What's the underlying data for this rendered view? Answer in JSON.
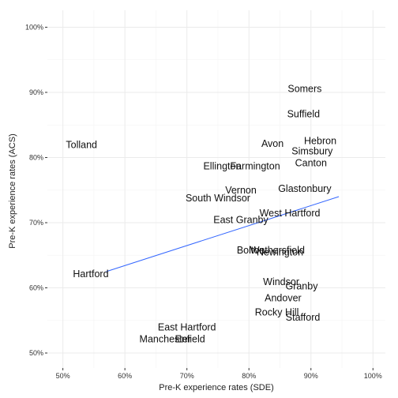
{
  "chart_data": {
    "type": "scatter",
    "title": "",
    "xlabel": "Pre-K experience rates (SDE)",
    "ylabel": "Pre-K experience rates (ACS)",
    "xlim": [
      0.475,
      1.02
    ],
    "ylim": [
      0.477,
      1.026
    ],
    "x_ticks": [
      0.5,
      0.6,
      0.7,
      0.8,
      0.9,
      1.0
    ],
    "y_ticks": [
      0.5,
      0.6,
      0.7,
      0.8,
      0.9,
      1.0
    ],
    "x_tick_labels": [
      "50%",
      "60%",
      "70%",
      "80%",
      "90%",
      "100%"
    ],
    "y_tick_labels": [
      "50%",
      "60%",
      "70%",
      "80%",
      "90%",
      "100%"
    ],
    "grid": true,
    "trend_line": {
      "x": [
        0.57,
        0.945
      ],
      "y": [
        0.625,
        0.74
      ],
      "color": "#3366ff"
    },
    "points": [
      {
        "label": "Somers",
        "x": 0.89,
        "y": 0.906
      },
      {
        "label": "Suffield",
        "x": 0.888,
        "y": 0.867
      },
      {
        "label": "Hebron",
        "x": 0.915,
        "y": 0.826
      },
      {
        "label": "Tolland",
        "x": 0.53,
        "y": 0.82
      },
      {
        "label": "Avon",
        "x": 0.838,
        "y": 0.822
      },
      {
        "label": "Simsbury",
        "x": 0.902,
        "y": 0.81
      },
      {
        "label": "Canton",
        "x": 0.9,
        "y": 0.792
      },
      {
        "label": "Ellington",
        "x": 0.757,
        "y": 0.787
      },
      {
        "label": "Farmington",
        "x": 0.81,
        "y": 0.787
      },
      {
        "label": "Glastonbury",
        "x": 0.89,
        "y": 0.753
      },
      {
        "label": "Vernon",
        "x": 0.787,
        "y": 0.75
      },
      {
        "label": "South Windsor",
        "x": 0.75,
        "y": 0.738
      },
      {
        "label": "West Hartford",
        "x": 0.866,
        "y": 0.715
      },
      {
        "label": "East Granby",
        "x": 0.787,
        "y": 0.705
      },
      {
        "label": "Bolton",
        "x": 0.803,
        "y": 0.658
      },
      {
        "label": "Wethersfield",
        "x": 0.846,
        "y": 0.658
      },
      {
        "label": "Newington",
        "x": 0.85,
        "y": 0.655
      },
      {
        "label": "Hartford",
        "x": 0.545,
        "y": 0.622
      },
      {
        "label": "Windsor",
        "x": 0.852,
        "y": 0.61
      },
      {
        "label": "Granby",
        "x": 0.885,
        "y": 0.603
      },
      {
        "label": "Andover",
        "x": 0.855,
        "y": 0.585
      },
      {
        "label": "Rocky Hill",
        "x": 0.845,
        "y": 0.563
      },
      {
        "label": "Stafford",
        "x": 0.887,
        "y": 0.555
      },
      {
        "label": "East Hartford",
        "x": 0.7,
        "y": 0.54
      },
      {
        "label": "Manchester",
        "x": 0.665,
        "y": 0.522
      },
      {
        "label": "Enfield",
        "x": 0.705,
        "y": 0.522
      }
    ]
  }
}
